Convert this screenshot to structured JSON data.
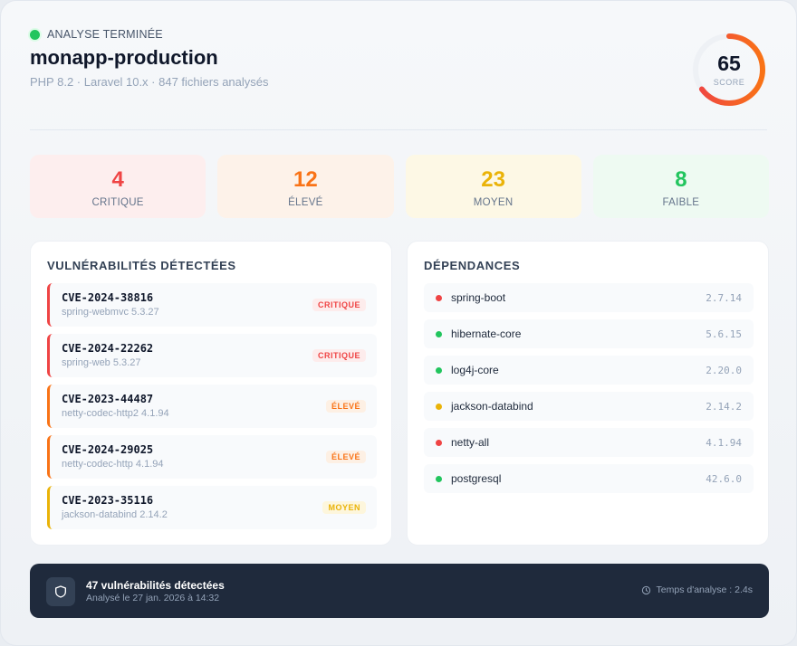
{
  "header": {
    "status_text": "ANALYSE TERMINÉE",
    "app_name": "monapp-production",
    "meta": "PHP 8.2 · Laravel 10.x · 847 fichiers analysés",
    "score": {
      "value": "65",
      "label": "SCORE",
      "percent": 65
    }
  },
  "stats": [
    {
      "value": "4",
      "label": "CRITIQUE"
    },
    {
      "value": "12",
      "label": "ÉLEVÉ"
    },
    {
      "value": "23",
      "label": "MOYEN"
    },
    {
      "value": "8",
      "label": "FAIBLE"
    }
  ],
  "vulnerabilities": {
    "title": "VULNÉRABILITÉS DÉTECTÉES",
    "items": [
      {
        "id": "CVE-2024-38816",
        "package": "spring-webmvc 5.3.27",
        "severity": "CRITIQUE"
      },
      {
        "id": "CVE-2024-22262",
        "package": "spring-web 5.3.27",
        "severity": "CRITIQUE"
      },
      {
        "id": "CVE-2023-44487",
        "package": "netty-codec-http2 4.1.94",
        "severity": "ÉLEVÉ"
      },
      {
        "id": "CVE-2024-29025",
        "package": "netty-codec-http 4.1.94",
        "severity": "ÉLEVÉ"
      },
      {
        "id": "CVE-2023-35116",
        "package": "jackson-databind 2.14.2",
        "severity": "MOYEN"
      }
    ]
  },
  "dependencies": {
    "title": "DÉPENDANCES",
    "items": [
      {
        "name": "spring-boot",
        "version": "2.7.14",
        "status_color": "#ef4444"
      },
      {
        "name": "hibernate-core",
        "version": "5.6.15",
        "status_color": "#22c55e"
      },
      {
        "name": "log4j-core",
        "version": "2.20.0",
        "status_color": "#22c55e"
      },
      {
        "name": "jackson-databind",
        "version": "2.14.2",
        "status_color": "#eab308"
      },
      {
        "name": "netty-all",
        "version": "4.1.94",
        "status_color": "#ef4444"
      },
      {
        "name": "postgresql",
        "version": "42.6.0",
        "status_color": "#22c55e"
      }
    ]
  },
  "footer": {
    "title": "47 vulnérabilités détectées",
    "subtitle": "Analysé le 27 jan. 2026 à 14:32",
    "time": "Temps d'analyse : 2.4s"
  },
  "colors": {
    "critical": "#ef4444",
    "high": "#f97316",
    "medium": "#eab308",
    "low": "#22c55e",
    "footer_bg": "#1f2a3c"
  },
  "icons": {
    "status": "status-dot",
    "footer": "shield-icon",
    "time": "clock-icon"
  }
}
